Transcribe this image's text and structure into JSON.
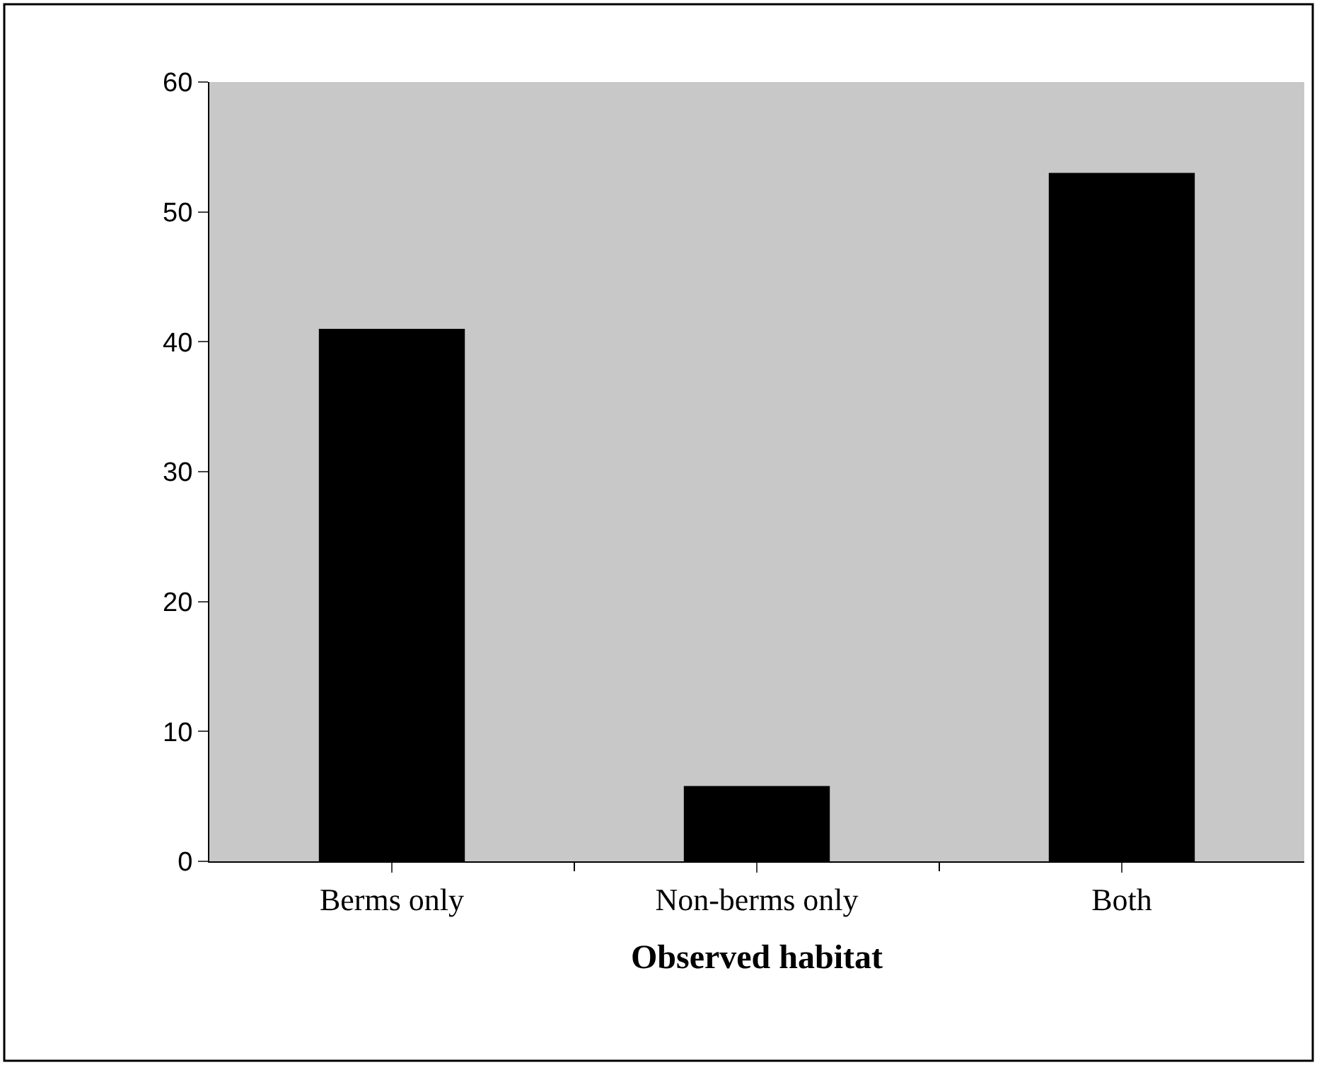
{
  "chart_data": {
    "type": "bar",
    "xlabel": "Observed habitat",
    "categories": [
      "Berms only",
      "Non-berms only",
      "Both"
    ],
    "values": [
      41,
      5.8,
      53
    ],
    "color": "#000000",
    "ylim": [
      0,
      60
    ],
    "yticks": [
      0,
      10,
      20,
      30,
      40,
      50,
      60
    ],
    "grid": false,
    "legend": false
  }
}
